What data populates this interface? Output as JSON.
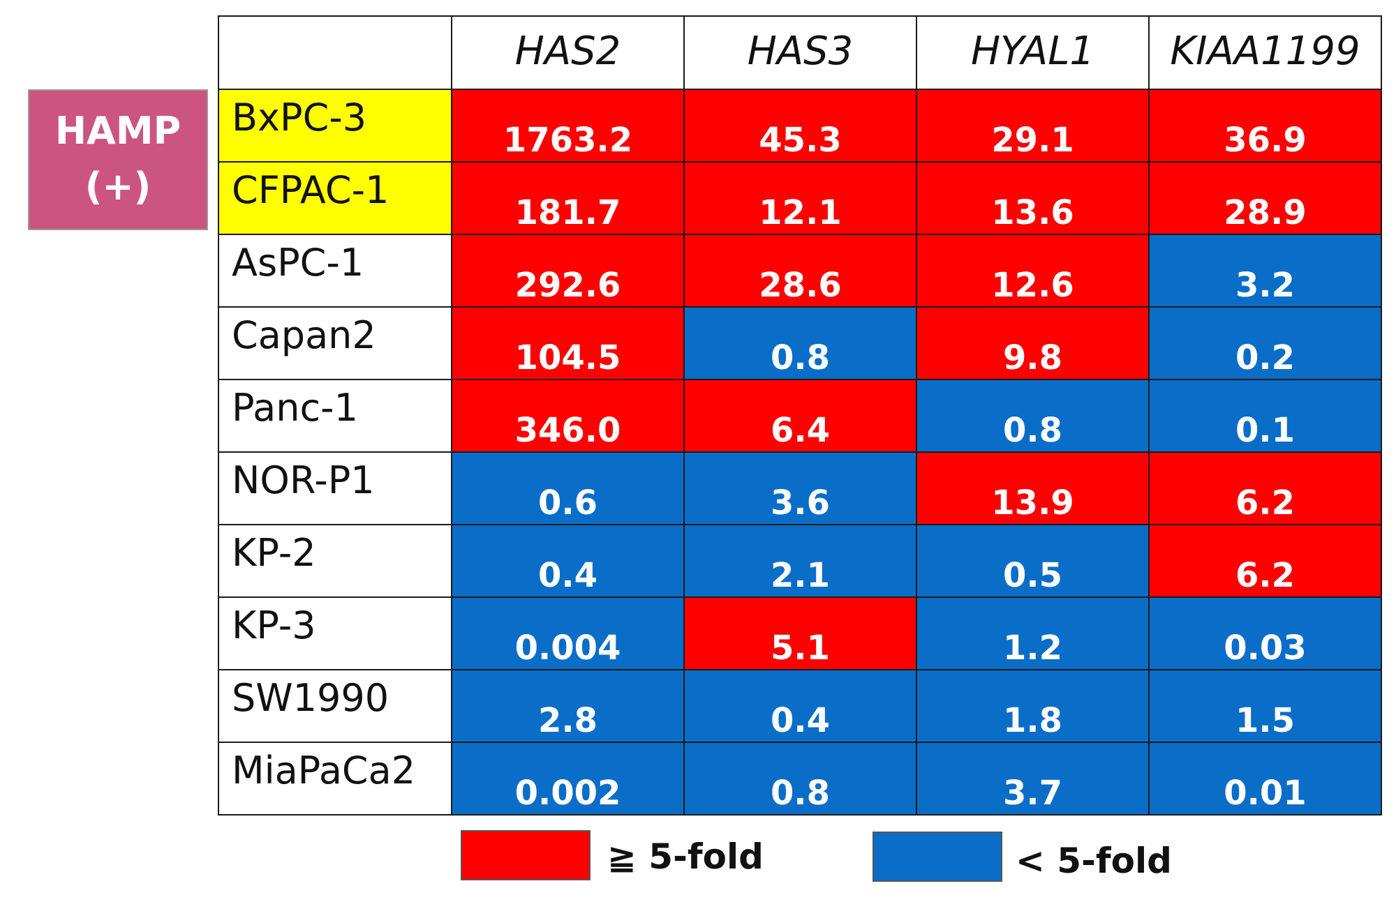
{
  "group_label": {
    "line1": "HAMP",
    "line2": "(+)"
  },
  "colors": {
    "high": "#ff0000",
    "low": "#0a6ec8",
    "highlight_row": "#ffff00",
    "group_box": "#cc5580"
  },
  "legend": [
    {
      "label": "≧ 5-fold",
      "color": "#ff0000"
    },
    {
      "label": "< 5-fold",
      "color": "#0a6ec8"
    }
  ],
  "chart_data": {
    "type": "table",
    "columns": [
      "HAS2",
      "HAS3",
      "HYAL1",
      "KIAA1199"
    ],
    "rows": [
      {
        "label": "BxPC-3",
        "highlight": true,
        "values": [
          "1763.2",
          "45.3",
          "29.1",
          "36.9"
        ],
        "category": [
          "high",
          "high",
          "high",
          "high"
        ]
      },
      {
        "label": "CFPAC-1",
        "highlight": true,
        "values": [
          "181.7",
          "12.1",
          "13.6",
          "28.9"
        ],
        "category": [
          "high",
          "high",
          "high",
          "high"
        ]
      },
      {
        "label": "AsPC-1",
        "highlight": false,
        "values": [
          "292.6",
          "28.6",
          "12.6",
          "3.2"
        ],
        "category": [
          "high",
          "high",
          "high",
          "low"
        ]
      },
      {
        "label": "Capan2",
        "highlight": false,
        "values": [
          "104.5",
          "0.8",
          "9.8",
          "0.2"
        ],
        "category": [
          "high",
          "low",
          "high",
          "low"
        ]
      },
      {
        "label": "Panc-1",
        "highlight": false,
        "values": [
          "346.0",
          "6.4",
          "0.8",
          "0.1"
        ],
        "category": [
          "high",
          "high",
          "low",
          "low"
        ]
      },
      {
        "label": "NOR-P1",
        "highlight": false,
        "values": [
          "0.6",
          "3.6",
          "13.9",
          "6.2"
        ],
        "category": [
          "low",
          "low",
          "high",
          "high"
        ]
      },
      {
        "label": "KP-2",
        "highlight": false,
        "values": [
          "0.4",
          "2.1",
          "0.5",
          "6.2"
        ],
        "category": [
          "low",
          "low",
          "low",
          "high"
        ]
      },
      {
        "label": "KP-3",
        "highlight": false,
        "values": [
          "0.004",
          "5.1",
          "1.2",
          "0.03"
        ],
        "category": [
          "low",
          "high",
          "low",
          "low"
        ]
      },
      {
        "label": "SW1990",
        "highlight": false,
        "values": [
          "2.8",
          "0.4",
          "1.8",
          "1.5"
        ],
        "category": [
          "low",
          "low",
          "low",
          "low"
        ]
      },
      {
        "label": "MiaPaCa2",
        "highlight": false,
        "values": [
          "0.002",
          "0.8",
          "3.7",
          "0.01"
        ],
        "category": [
          "low",
          "low",
          "low",
          "low"
        ]
      }
    ]
  }
}
